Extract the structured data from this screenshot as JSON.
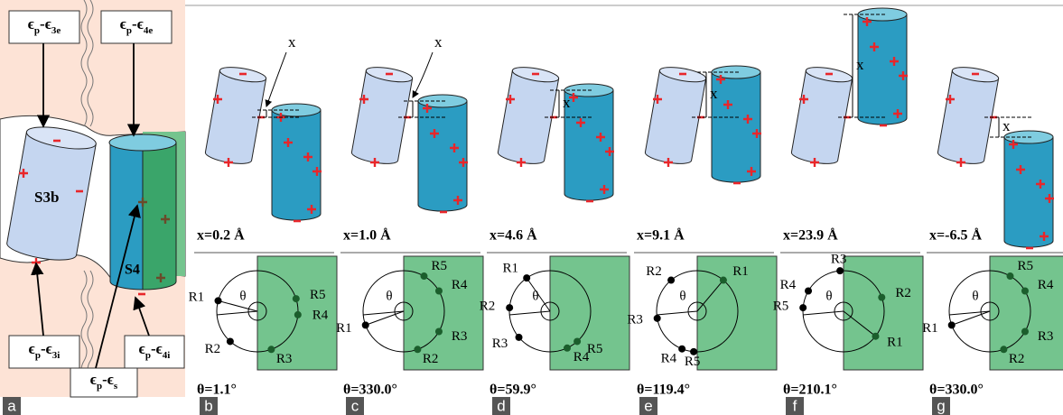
{
  "panel_a": {
    "letter": "a",
    "energy_labels": [
      [
        "ϵ",
        "p",
        "-ϵ",
        "3e"
      ],
      [
        "ϵ",
        "p",
        "-ϵ",
        "4e"
      ],
      [
        "ϵ",
        "p",
        "-ϵ",
        "3i"
      ],
      [
        "ϵ",
        "p",
        "-ϵ",
        "4i"
      ],
      [
        "ϵ",
        "p",
        "-ϵ",
        "s"
      ]
    ],
    "helix_left": "S3b",
    "helix_right": "S4"
  },
  "panels": [
    {
      "letter": "b",
      "x_symbol": "x",
      "x_caption": "x=0.2 Å",
      "theta_symbol": "θ",
      "theta_caption": "θ=1.1°",
      "residues": [
        "R1",
        "R2",
        "R3",
        "R4",
        "R5"
      ]
    },
    {
      "letter": "c",
      "x_symbol": "x",
      "x_caption": "x=1.0 Å",
      "theta_symbol": "θ",
      "theta_caption": "θ=330.0°",
      "residues": [
        "R1",
        "R2",
        "R3",
        "R4",
        "R5"
      ]
    },
    {
      "letter": "d",
      "x_symbol": "x",
      "x_caption": "x=4.6 Å",
      "theta_symbol": "θ",
      "theta_caption": "θ=59.9°",
      "residues": [
        "R1",
        "R2",
        "R3",
        "R4",
        "R5"
      ]
    },
    {
      "letter": "e",
      "x_symbol": "x",
      "x_caption": "x=9.1 Å",
      "theta_symbol": "θ",
      "theta_caption": "θ=119.4°",
      "residues": [
        "R1",
        "R2",
        "R3",
        "R4",
        "R5"
      ]
    },
    {
      "letter": "f",
      "x_symbol": "x",
      "x_caption": "x=23.9 Å",
      "theta_symbol": "θ",
      "theta_caption": "θ=210.1°",
      "residues": [
        "R1",
        "R2",
        "R3",
        "R4",
        "R5"
      ]
    },
    {
      "letter": "g",
      "x_symbol": "x",
      "x_caption": "x=-6.5 Å",
      "theta_symbol": "θ",
      "theta_caption": "θ=330.0°",
      "residues": [
        "R1",
        "R2",
        "R3",
        "R4",
        "R5"
      ]
    }
  ]
}
